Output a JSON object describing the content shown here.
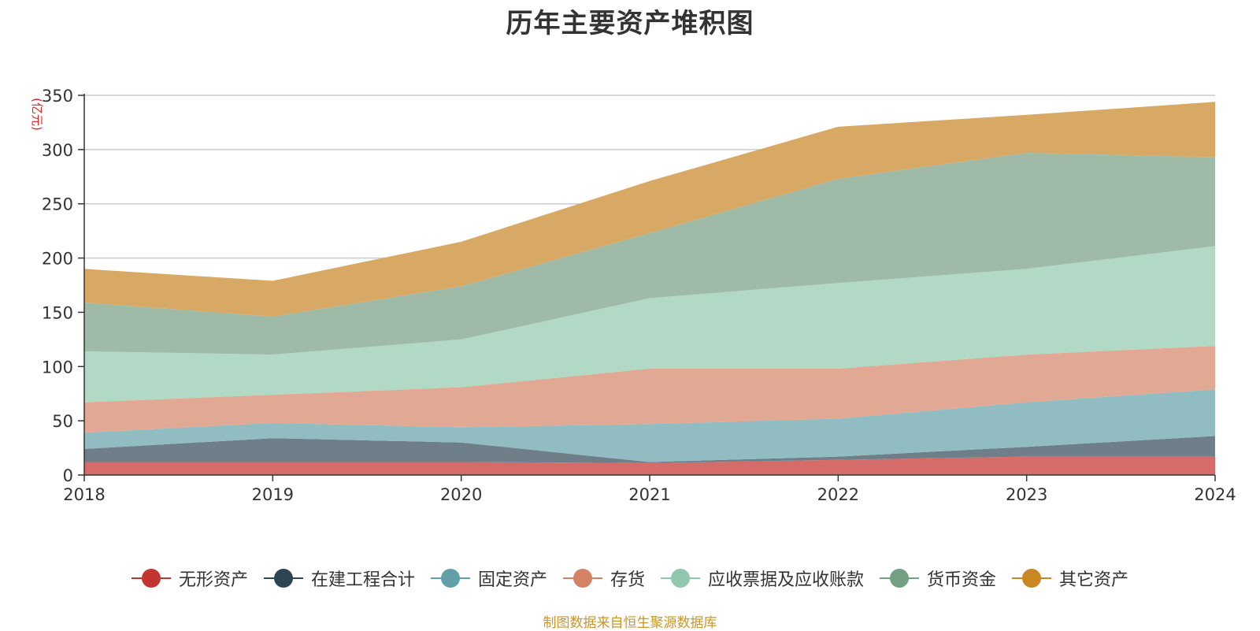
{
  "chart_data": {
    "type": "area",
    "stacked": true,
    "title": "历年主要资产堆积图",
    "unit_label": "(亿元)",
    "categories": [
      "2018",
      "2019",
      "2020",
      "2021",
      "2022",
      "2023",
      "2024"
    ],
    "yticks": [
      0,
      50,
      100,
      150,
      200,
      250,
      300,
      350
    ],
    "ylim": [
      0,
      350
    ],
    "grid": true,
    "legend_position": "bottom",
    "series": [
      {
        "name": "无形资产",
        "color": "#c23531",
        "fill": "#d66c6a",
        "values": [
          12,
          12,
          12,
          11,
          14,
          17,
          17
        ]
      },
      {
        "name": "在建工程合计",
        "color": "#2f4554",
        "fill": "#6e7f8a",
        "values": [
          12,
          22,
          18,
          1,
          3,
          9,
          19
        ]
      },
      {
        "name": "固定资产",
        "color": "#61a0a8",
        "fill": "#90bcc2",
        "values": [
          15,
          14,
          14,
          35,
          35,
          41,
          43
        ]
      },
      {
        "name": "存货",
        "color": "#d48265",
        "fill": "#e1a893",
        "values": [
          28,
          26,
          37,
          51,
          46,
          44,
          40
        ]
      },
      {
        "name": "应收票据及应收账款",
        "color": "#91c7ae",
        "fill": "#b2d9c6",
        "values": [
          47,
          37,
          44,
          65,
          79,
          79,
          92
        ]
      },
      {
        "name": "货币资金",
        "color": "#749f83",
        "fill": "#9fbba8",
        "values": [
          45,
          35,
          49,
          60,
          96,
          107,
          82
        ]
      },
      {
        "name": "其它资产",
        "color": "#ca8622",
        "fill": "#d8a964",
        "values": [
          31,
          33,
          41,
          48,
          48,
          35,
          51
        ]
      }
    ]
  },
  "source_note": "制图数据来自恒生聚源数据库"
}
